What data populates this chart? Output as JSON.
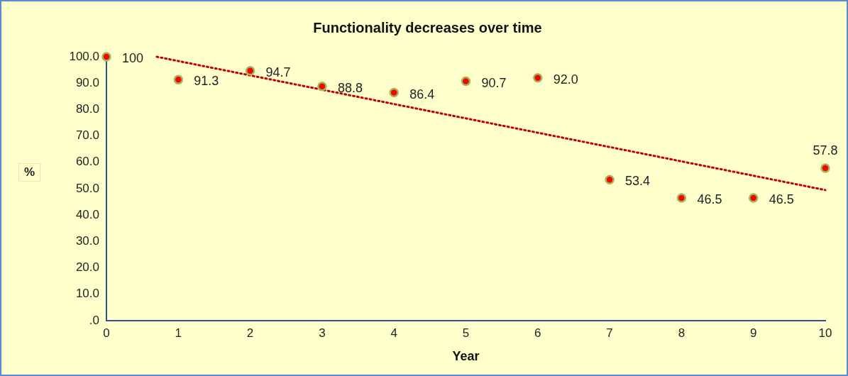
{
  "chart_data": {
    "type": "scatter",
    "title": "Functionality decreases over time",
    "xlabel": "Year",
    "ylabel": "%",
    "xlim": [
      0,
      10
    ],
    "xticks": [
      0,
      1,
      2,
      3,
      4,
      5,
      6,
      7,
      8,
      9,
      10
    ],
    "ylim": [
      0,
      100
    ],
    "yticks": [
      {
        "value": 0,
        "label": ".0"
      },
      {
        "value": 10,
        "label": "10.0"
      },
      {
        "value": 20,
        "label": "20.0"
      },
      {
        "value": 30,
        "label": "30.0"
      },
      {
        "value": 40,
        "label": "40.0"
      },
      {
        "value": 50,
        "label": "50.0"
      },
      {
        "value": 60,
        "label": "60.0"
      },
      {
        "value": 70,
        "label": "70.0"
      },
      {
        "value": 80,
        "label": "80.0"
      },
      {
        "value": 90,
        "label": "90.0"
      },
      {
        "value": 100,
        "label": "100.0"
      }
    ],
    "marker": "circle",
    "series": [
      {
        "color": "#ff0000",
        "x": [
          0,
          1,
          2,
          3,
          4,
          5,
          6,
          7,
          8,
          9,
          10
        ],
        "values": [
          100,
          91.3,
          94.7,
          88.8,
          86.4,
          90.7,
          92.0,
          53.4,
          46.5,
          46.5,
          57.8
        ],
        "value_labels": [
          "100",
          "91.3",
          "94.7",
          "88.8",
          "86.4",
          "90.7",
          "92.0",
          "53.4",
          "46.5",
          "46.5",
          "57.8"
        ]
      },
      {
        "type": "line",
        "color": "#c00000",
        "line_style": "dotted",
        "marker": "none",
        "x": [
          0.7,
          10
        ],
        "values": [
          100,
          49.5
        ]
      }
    ]
  }
}
